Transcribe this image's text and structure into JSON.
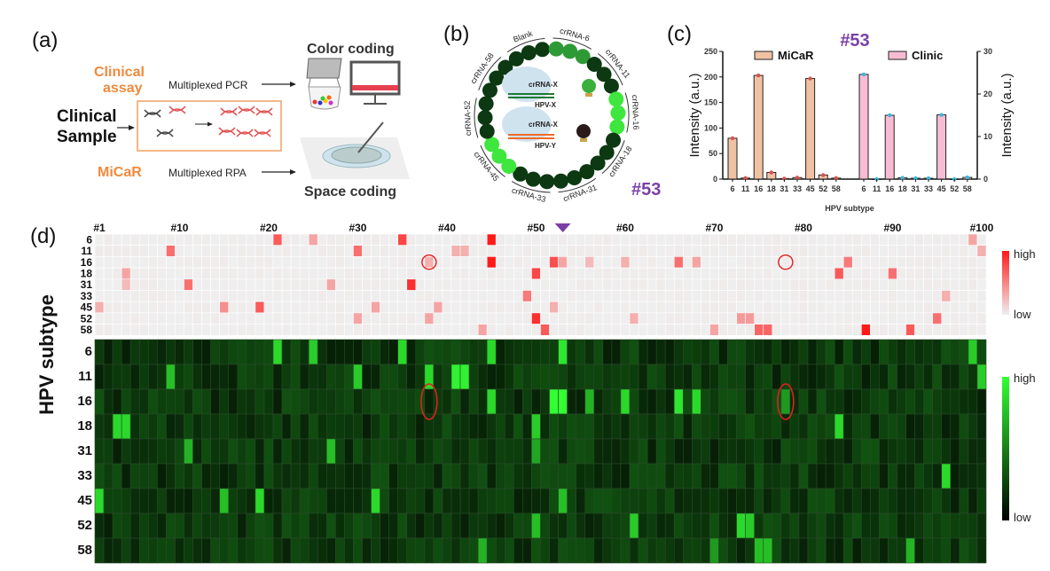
{
  "panel_a": {
    "label": "(a)",
    "clinical_assay": "Clinical\nassay",
    "clinical_assay_l1": "Clinical",
    "clinical_assay_l2": "assay",
    "clinical_sample_l1": "Clinical",
    "clinical_sample_l2": "Sample",
    "micar": "MiCaR",
    "pcr": "Multiplexed PCR",
    "rpa": "Multiplexed RPA",
    "color_coding": "Color coding",
    "space_coding": "Space coding",
    "accent_color": "#f08a3c"
  },
  "panel_b": {
    "label": "(b)",
    "ring_labels": [
      "Blank",
      "crRNA-6",
      "crRNA-11",
      "crRNA-16",
      "crRNA-18",
      "crRNA-31",
      "crRNA-33",
      "crRNA-45",
      "crRNA-52",
      "crRNA-58"
    ],
    "positive_groups": {
      "crRNA-6": "medium",
      "crRNA-16": "high",
      "crRNA-45": "high"
    },
    "legend": {
      "crrna_x_1": "crRNA-X",
      "hpv_x": "HPV-X",
      "crrna_x_2": "crRNA-X",
      "hpv_y": "HPV-Y"
    },
    "sample": "#53",
    "colors": {
      "high": "#3ee63e",
      "medium": "#2e9a36",
      "low": "#0c3812"
    }
  },
  "chart_data": [
    {
      "type": "bar",
      "panel": "(c)",
      "title": "#53",
      "categories": [
        "6",
        "11",
        "16",
        "18",
        "31",
        "33",
        "45",
        "52",
        "58"
      ],
      "xlabel": "HPV subtype",
      "ylabel_left": "Intensity (a.u.)",
      "ylabel_right": "Intensity (a.u.)",
      "legend_placement": "top",
      "series": [
        {
          "name": "MiCaR",
          "axis": "left",
          "ylim": [
            0,
            250
          ],
          "ticks": [
            0,
            50,
            100,
            150,
            200,
            250
          ],
          "color": "#f0c2a4",
          "dot_color": "#d9534f",
          "values": [
            80,
            2,
            203,
            13,
            1,
            3,
            197,
            8,
            2
          ]
        },
        {
          "name": "Clinic",
          "axis": "right",
          "ylim": [
            0,
            30
          ],
          "ticks": [
            0,
            10,
            20,
            30
          ],
          "color": "#f7bcd3",
          "dot_color": "#3cb6d8",
          "values": [
            24.6,
            0,
            15,
            0.3,
            0.2,
            0.2,
            15.1,
            0,
            0.4
          ]
        }
      ]
    },
    {
      "type": "heatmap",
      "panel": "(d)",
      "ylabel": "HPV subtype",
      "rows": [
        "6",
        "11",
        "16",
        "18",
        "31",
        "33",
        "45",
        "52",
        "58"
      ],
      "column_labels": [
        "#1",
        "#10",
        "#20",
        "#30",
        "#40",
        "#50",
        "#60",
        "#70",
        "#80",
        "#90",
        "#100"
      ],
      "column_label_samples": [
        1,
        10,
        20,
        30,
        40,
        50,
        60,
        70,
        80,
        90,
        100
      ],
      "n_samples": 100,
      "highlighted_sample": 53,
      "circled": [
        {
          "row": "16",
          "sample": 38
        },
        {
          "row": "16",
          "sample": 78
        }
      ],
      "clinic": {
        "colorbar": [
          "high",
          "low"
        ],
        "colors": {
          "high": "#ff1a1a",
          "low": "#efefef"
        },
        "positives": {
          "6": [
            [
              21,
              0.7
            ],
            [
              25,
              0.35
            ],
            [
              35,
              0.8
            ],
            [
              45,
              1.0
            ],
            [
              99,
              0.35
            ]
          ],
          "11": [
            [
              9,
              0.6
            ],
            [
              30,
              0.6
            ],
            [
              41,
              0.3
            ],
            [
              42,
              0.3
            ],
            [
              100,
              0.3
            ]
          ],
          "16": [
            [
              38,
              0.3
            ],
            [
              45,
              1.0
            ],
            [
              52,
              0.75
            ],
            [
              53,
              0.35
            ],
            [
              56,
              0.25
            ],
            [
              60,
              0.3
            ],
            [
              66,
              0.6
            ],
            [
              68,
              0.35
            ],
            [
              85,
              0.55
            ]
          ],
          "18": [
            [
              4,
              0.35
            ],
            [
              50,
              0.8
            ],
            [
              84,
              0.7
            ],
            [
              90,
              0.6
            ]
          ],
          "31": [
            [
              4,
              0.25
            ],
            [
              11,
              0.6
            ],
            [
              27,
              0.35
            ],
            [
              36,
              0.9
            ]
          ],
          "33": [
            [
              49,
              0.55
            ],
            [
              96,
              0.3
            ]
          ],
          "45": [
            [
              1,
              0.3
            ],
            [
              15,
              0.45
            ],
            [
              19,
              0.7
            ],
            [
              32,
              0.35
            ],
            [
              39,
              0.35
            ],
            [
              52,
              0.3
            ]
          ],
          "52": [
            [
              30,
              0.35
            ],
            [
              38,
              0.35
            ],
            [
              50,
              0.9
            ],
            [
              61,
              0.3
            ],
            [
              73,
              0.4
            ],
            [
              74,
              0.4
            ],
            [
              95,
              0.6
            ]
          ],
          "58": [
            [
              44,
              0.35
            ],
            [
              51,
              0.7
            ],
            [
              70,
              0.35
            ],
            [
              75,
              0.65
            ],
            [
              76,
              0.65
            ],
            [
              87,
              1.0
            ],
            [
              92,
              0.7
            ]
          ]
        }
      },
      "micar": {
        "colorbar": [
          "high",
          "low"
        ],
        "colors": {
          "high": "#33ff33",
          "low": "#000000"
        },
        "positives": {
          "6": [
            [
              21,
              0.85
            ],
            [
              25,
              0.8
            ],
            [
              35,
              0.85
            ],
            [
              45,
              0.85
            ],
            [
              53,
              0.9
            ],
            [
              99,
              0.8
            ]
          ],
          "11": [
            [
              9,
              0.75
            ],
            [
              30,
              0.8
            ],
            [
              38,
              0.85
            ],
            [
              41,
              0.95
            ],
            [
              42,
              0.95
            ],
            [
              100,
              0.8
            ]
          ],
          "16": [
            [
              45,
              0.85
            ],
            [
              52,
              1.0
            ],
            [
              53,
              1.0
            ],
            [
              56,
              0.7
            ],
            [
              60,
              0.85
            ],
            [
              66,
              0.9
            ],
            [
              68,
              0.85
            ],
            [
              78,
              0.6
            ]
          ],
          "18": [
            [
              3,
              0.85
            ],
            [
              4,
              0.85
            ],
            [
              50,
              0.8
            ],
            [
              84,
              0.85
            ]
          ],
          "31": [
            [
              11,
              0.7
            ],
            [
              27,
              0.75
            ],
            [
              50,
              0.65
            ]
          ],
          "33": [
            [
              96,
              0.85
            ]
          ],
          "45": [
            [
              1,
              0.85
            ],
            [
              15,
              0.75
            ],
            [
              19,
              0.85
            ],
            [
              32,
              0.85
            ],
            [
              53,
              0.75
            ]
          ],
          "52": [
            [
              50,
              0.75
            ],
            [
              61,
              0.8
            ],
            [
              73,
              0.85
            ],
            [
              74,
              0.8
            ]
          ],
          "58": [
            [
              44,
              0.7
            ],
            [
              70,
              0.6
            ],
            [
              75,
              0.75
            ],
            [
              76,
              0.75
            ],
            [
              92,
              0.7
            ]
          ]
        }
      }
    }
  ],
  "panel_c": {
    "label": "(c)"
  },
  "panel_d": {
    "label": "(d)"
  },
  "purple": "#7b3fa8"
}
